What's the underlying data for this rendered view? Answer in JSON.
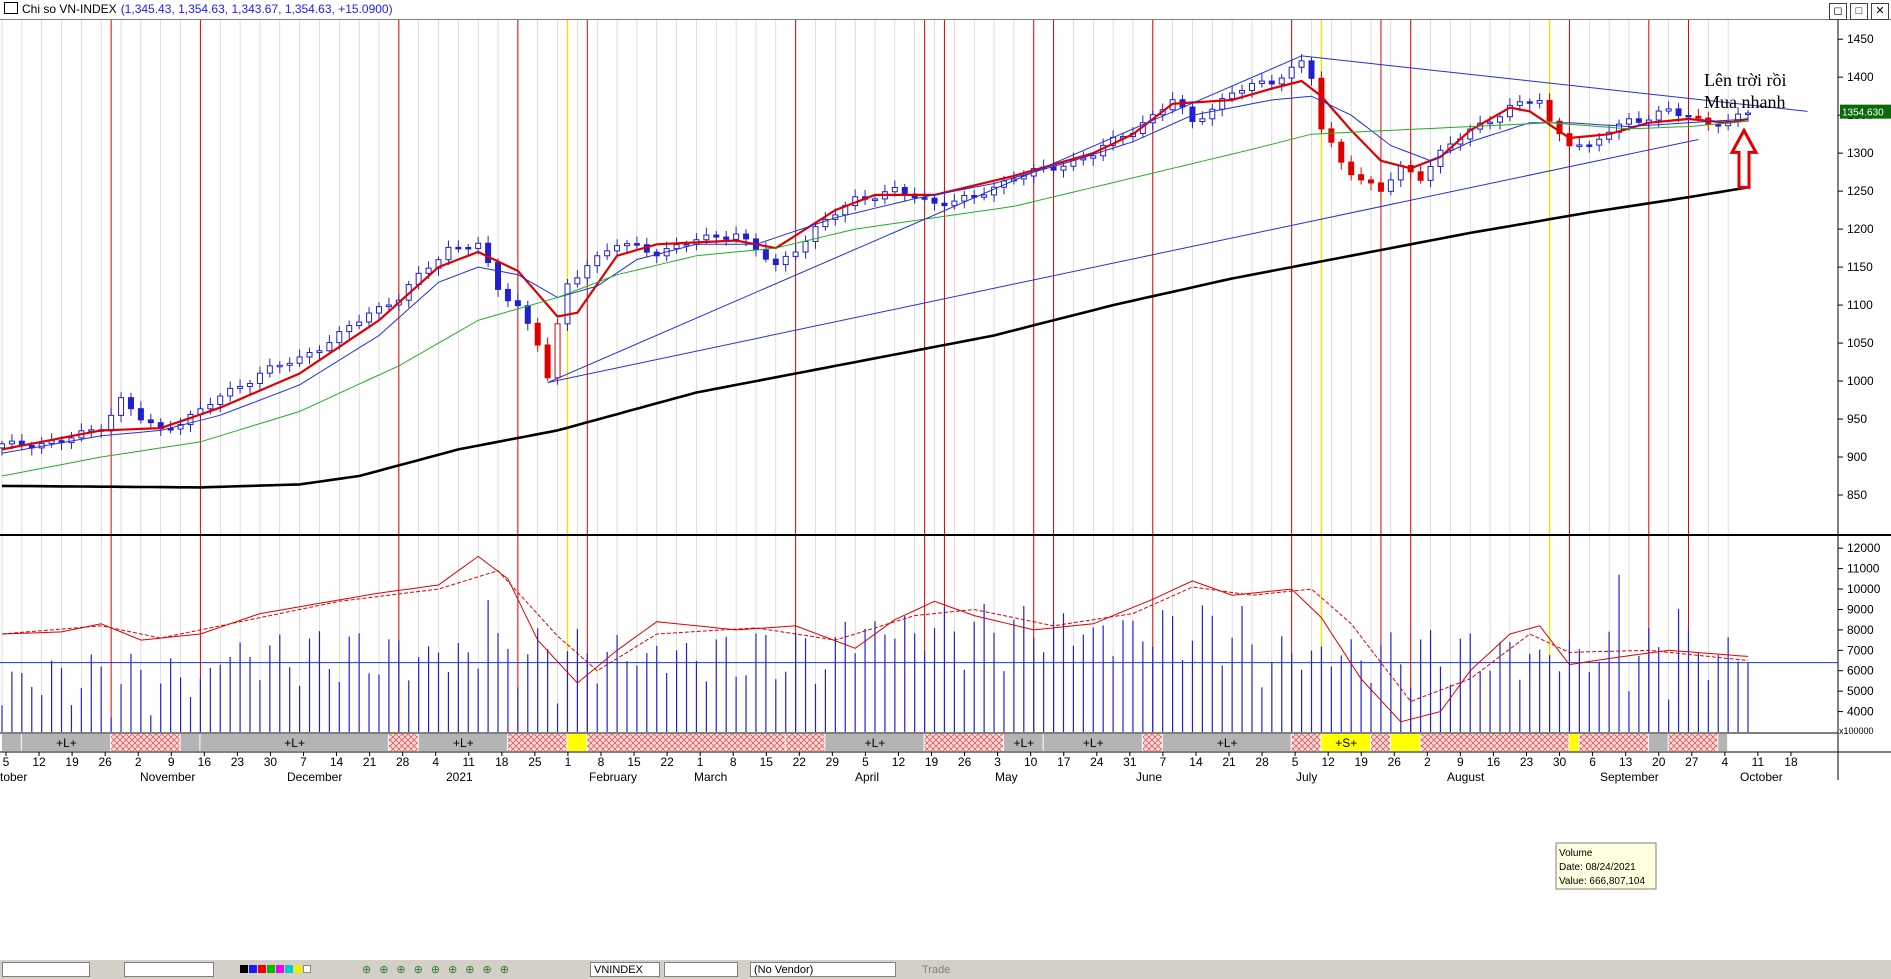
{
  "window": {
    "title": "Chi so VN-INDEX",
    "quote": "(1,345.43, 1,354.63, 1,343.67, 1,354.63, +15.0900)",
    "buttons": [
      "◻",
      "□",
      "✕"
    ]
  },
  "annotation": {
    "line1": "Lên trời rồi",
    "line2": "Mua nhanh"
  },
  "colors": {
    "price_up": "#2020d0",
    "ma_fast": "#e00000",
    "ma_mid": "#2030e0",
    "ma_slow": "#20b020",
    "ma_long": "#000000",
    "trendline": "#2030e0",
    "cycle_line_red": "#e00000",
    "cycle_line_yellow": "#f0e000",
    "arrow": "#e00000"
  },
  "chart_data": [
    {
      "type": "candlestick",
      "symbol": "VNINDEX",
      "last_price_label": "1354.630",
      "y_axis_ticks": [
        850,
        900,
        950,
        1000,
        1050,
        1100,
        1150,
        1200,
        1250,
        1300,
        1350,
        1400,
        1450
      ],
      "ylim": [
        800,
        1470
      ],
      "series": [
        {
          "name": "close",
          "points": [
            [
              0,
              915
            ],
            [
              6,
              920
            ],
            [
              10,
              940
            ],
            [
              12,
              975
            ],
            [
              14,
              950
            ],
            [
              16,
              935
            ],
            [
              20,
              960
            ],
            [
              22,
              980
            ],
            [
              26,
              1010
            ],
            [
              30,
              1030
            ],
            [
              34,
              1060
            ],
            [
              37,
              1090
            ],
            [
              40,
              1110
            ],
            [
              43,
              1150
            ],
            [
              45,
              1175
            ],
            [
              48,
              1180
            ],
            [
              50,
              1120
            ],
            [
              52,
              1100
            ],
            [
              54,
              1050
            ],
            [
              55,
              1005
            ],
            [
              56,
              1070
            ],
            [
              57,
              1125
            ],
            [
              59,
              1155
            ],
            [
              62,
              1180
            ],
            [
              66,
              1170
            ],
            [
              70,
              1185
            ],
            [
              74,
              1195
            ],
            [
              78,
              1150
            ],
            [
              82,
              1200
            ],
            [
              86,
              1240
            ],
            [
              90,
              1250
            ],
            [
              94,
              1235
            ],
            [
              98,
              1240
            ],
            [
              102,
              1270
            ],
            [
              106,
              1280
            ],
            [
              110,
              1300
            ],
            [
              114,
              1330
            ],
            [
              118,
              1370
            ],
            [
              120,
              1340
            ],
            [
              124,
              1380
            ],
            [
              128,
              1395
            ],
            [
              131,
              1420
            ],
            [
              132,
              1400
            ],
            [
              133,
              1330
            ],
            [
              135,
              1290
            ],
            [
              137,
              1265
            ],
            [
              139,
              1250
            ],
            [
              141,
              1280
            ],
            [
              143,
              1270
            ],
            [
              145,
              1300
            ],
            [
              148,
              1330
            ],
            [
              152,
              1360
            ],
            [
              155,
              1370
            ],
            [
              156,
              1340
            ],
            [
              158,
              1315
            ],
            [
              160,
              1305
            ],
            [
              162,
              1330
            ],
            [
              164,
              1345
            ],
            [
              166,
              1345
            ],
            [
              168,
              1355
            ],
            [
              170,
              1350
            ],
            [
              172,
              1340
            ],
            [
              174,
              1338
            ],
            [
              176,
              1354.63
            ]
          ]
        },
        {
          "name": "ma_fast",
          "points": [
            [
              0,
              910
            ],
            [
              10,
              935
            ],
            [
              16,
              938
            ],
            [
              22,
              965
            ],
            [
              30,
              1010
            ],
            [
              38,
              1080
            ],
            [
              44,
              1150
            ],
            [
              48,
              1170
            ],
            [
              52,
              1145
            ],
            [
              56,
              1085
            ],
            [
              58,
              1090
            ],
            [
              62,
              1165
            ],
            [
              66,
              1180
            ],
            [
              74,
              1185
            ],
            [
              78,
              1175
            ],
            [
              84,
              1225
            ],
            [
              88,
              1245
            ],
            [
              94,
              1245
            ],
            [
              102,
              1270
            ],
            [
              110,
              1300
            ],
            [
              114,
              1325
            ],
            [
              118,
              1365
            ],
            [
              124,
              1370
            ],
            [
              128,
              1385
            ],
            [
              131,
              1395
            ],
            [
              133,
              1375
            ],
            [
              136,
              1330
            ],
            [
              139,
              1290
            ],
            [
              142,
              1280
            ],
            [
              145,
              1295
            ],
            [
              148,
              1330
            ],
            [
              152,
              1360
            ],
            [
              154,
              1355
            ],
            [
              158,
              1320
            ],
            [
              162,
              1325
            ],
            [
              166,
              1340
            ],
            [
              170,
              1345
            ],
            [
              174,
              1340
            ],
            [
              176,
              1345
            ]
          ]
        },
        {
          "name": "ma_mid",
          "points": [
            [
              0,
              905
            ],
            [
              10,
              928
            ],
            [
              16,
              935
            ],
            [
              22,
              955
            ],
            [
              30,
              995
            ],
            [
              38,
              1060
            ],
            [
              44,
              1130
            ],
            [
              48,
              1150
            ],
            [
              52,
              1140
            ],
            [
              56,
              1110
            ],
            [
              60,
              1125
            ],
            [
              64,
              1160
            ],
            [
              70,
              1180
            ],
            [
              76,
              1180
            ],
            [
              84,
              1215
            ],
            [
              92,
              1240
            ],
            [
              100,
              1260
            ],
            [
              108,
              1290
            ],
            [
              114,
              1315
            ],
            [
              120,
              1350
            ],
            [
              128,
              1370
            ],
            [
              132,
              1375
            ],
            [
              136,
              1350
            ],
            [
              140,
              1310
            ],
            [
              144,
              1290
            ],
            [
              148,
              1315
            ],
            [
              154,
              1340
            ],
            [
              158,
              1340
            ],
            [
              164,
              1335
            ],
            [
              170,
              1340
            ],
            [
              176,
              1345
            ]
          ]
        },
        {
          "name": "ma_slow",
          "points": [
            [
              0,
              875
            ],
            [
              10,
              900
            ],
            [
              20,
              920
            ],
            [
              30,
              960
            ],
            [
              40,
              1020
            ],
            [
              48,
              1080
            ],
            [
              56,
              1110
            ],
            [
              62,
              1140
            ],
            [
              70,
              1165
            ],
            [
              78,
              1175
            ],
            [
              86,
              1200
            ],
            [
              94,
              1215
            ],
            [
              102,
              1230
            ],
            [
              110,
              1255
            ],
            [
              118,
              1280
            ],
            [
              126,
              1305
            ],
            [
              132,
              1325
            ],
            [
              140,
              1330
            ],
            [
              148,
              1335
            ],
            [
              156,
              1340
            ],
            [
              164,
              1332
            ],
            [
              170,
              1335
            ],
            [
              176,
              1342
            ]
          ]
        },
        {
          "name": "ma_long",
          "points": [
            [
              0,
              862
            ],
            [
              10,
              861
            ],
            [
              20,
              860
            ],
            [
              30,
              864
            ],
            [
              36,
              875
            ],
            [
              46,
              910
            ],
            [
              56,
              935
            ],
            [
              70,
              985
            ],
            [
              84,
              1020
            ],
            [
              100,
              1060
            ],
            [
              112,
              1100
            ],
            [
              124,
              1135
            ],
            [
              136,
              1165
            ],
            [
              148,
              1195
            ],
            [
              160,
              1222
            ],
            [
              170,
              1242
            ],
            [
              176,
              1255
            ]
          ]
        }
      ],
      "trendlines": [
        {
          "from": [
            55,
            998
          ],
          "to": [
            131,
            1428
          ]
        },
        {
          "from": [
            131,
            1428
          ],
          "to": [
            182,
            1355
          ]
        },
        {
          "from": [
            55,
            998
          ],
          "to": [
            171,
            1318
          ]
        }
      ],
      "cycle_lines": {
        "red": [
          11,
          20,
          40,
          52,
          59,
          80,
          93,
          95,
          104,
          106,
          116,
          130,
          139,
          142,
          158,
          166,
          170
        ],
        "yellow": [
          57,
          133,
          156
        ]
      }
    },
    {
      "type": "bar",
      "name": "volume",
      "axis_unit": "x100000",
      "y_axis_ticks": [
        4000,
        5000,
        6000,
        7000,
        8000,
        9000,
        10000,
        11000,
        12000
      ],
      "ylim": [
        3000,
        12500
      ],
      "reference_level": 6400,
      "tooltip": {
        "label": "Volume",
        "date": "Date: 08/24/2021",
        "value": "Value: 666,807,104"
      },
      "volume_oscillator": [
        {
          "name": "fast",
          "points": [
            [
              0,
              7800
            ],
            [
              6,
              7900
            ],
            [
              10,
              8300
            ],
            [
              14,
              7500
            ],
            [
              20,
              7800
            ],
            [
              26,
              8800
            ],
            [
              32,
              9300
            ],
            [
              38,
              9800
            ],
            [
              44,
              10200
            ],
            [
              48,
              11600
            ],
            [
              51,
              10500
            ],
            [
              54,
              7500
            ],
            [
              58,
              5400
            ],
            [
              62,
              7000
            ],
            [
              66,
              8400
            ],
            [
              74,
              8000
            ],
            [
              80,
              8200
            ],
            [
              86,
              7100
            ],
            [
              90,
              8500
            ],
            [
              94,
              9400
            ],
            [
              98,
              8700
            ],
            [
              104,
              8000
            ],
            [
              110,
              8300
            ],
            [
              116,
              9500
            ],
            [
              120,
              10400
            ],
            [
              124,
              9700
            ],
            [
              130,
              10000
            ],
            [
              133,
              8600
            ],
            [
              137,
              5600
            ],
            [
              141,
              3500
            ],
            [
              145,
              4000
            ],
            [
              148,
              6000
            ],
            [
              152,
              7800
            ],
            [
              155,
              8200
            ],
            [
              158,
              6300
            ],
            [
              162,
              6600
            ],
            [
              168,
              7000
            ],
            [
              176,
              6700
            ]
          ]
        },
        {
          "name": "slow",
          "points": [
            [
              0,
              7800
            ],
            [
              10,
              8200
            ],
            [
              16,
              7600
            ],
            [
              26,
              8600
            ],
            [
              34,
              9400
            ],
            [
              44,
              10000
            ],
            [
              50,
              10900
            ],
            [
              56,
              7700
            ],
            [
              60,
              6000
            ],
            [
              66,
              7800
            ],
            [
              76,
              8100
            ],
            [
              84,
              7500
            ],
            [
              92,
              8700
            ],
            [
              98,
              9000
            ],
            [
              106,
              8200
            ],
            [
              114,
              8800
            ],
            [
              120,
              10100
            ],
            [
              126,
              9700
            ],
            [
              132,
              10000
            ],
            [
              136,
              8300
            ],
            [
              142,
              4500
            ],
            [
              148,
              5600
            ],
            [
              154,
              7800
            ],
            [
              158,
              6900
            ],
            [
              166,
              7000
            ],
            [
              176,
              6500
            ]
          ]
        }
      ]
    }
  ],
  "x_axis": {
    "day_ticks": [
      "5",
      "12",
      "19",
      "26",
      "2",
      "9",
      "16",
      "23",
      "30",
      "7",
      "14",
      "21",
      "28",
      "4",
      "11",
      "18",
      "25",
      "1",
      "8",
      "15",
      "22",
      "1",
      "8",
      "15",
      "22",
      "29",
      "5",
      "12",
      "19",
      "26",
      "3",
      "10",
      "17",
      "24",
      "31",
      "7",
      "14",
      "21",
      "28",
      "5",
      "12",
      "19",
      "26",
      "2",
      "9",
      "16",
      "23",
      "30",
      "6",
      "13",
      "20",
      "27",
      "4",
      "11",
      "18"
    ],
    "month_labels": [
      "tober",
      "November",
      "December",
      "2021",
      "February",
      "March",
      "April",
      "May",
      "June",
      "July",
      "August",
      "September",
      "October"
    ]
  },
  "cycle_strip": {
    "labels": [
      "+L+",
      "+L+",
      "+L+",
      "+L+",
      "+L+",
      "+L+",
      "+L+",
      "+S+"
    ]
  },
  "toolbar": {
    "symbol": "VNINDEX",
    "vendor": "(No Vendor)",
    "trade_label": "Trade"
  }
}
